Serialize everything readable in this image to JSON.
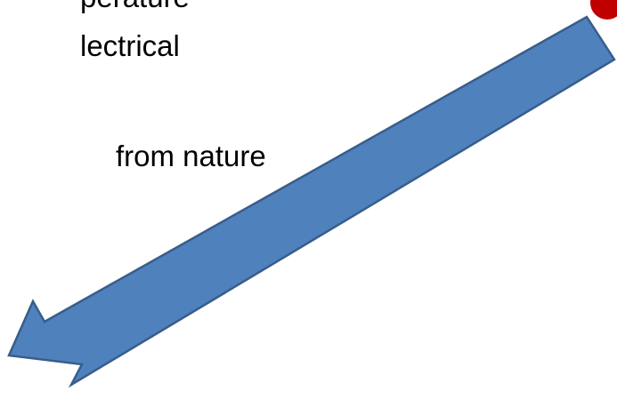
{
  "slide": {
    "lines": [
      "perature",
      "lectrical",
      "from nature"
    ]
  },
  "colors": {
    "text": "#000000",
    "arrow_fill": "#4F81BD",
    "arrow_stroke": "#385D8A",
    "red_mark": "#C00000",
    "background": "#FFFFFF"
  },
  "icons": {
    "arrow": "arrow-down-left-icon"
  }
}
